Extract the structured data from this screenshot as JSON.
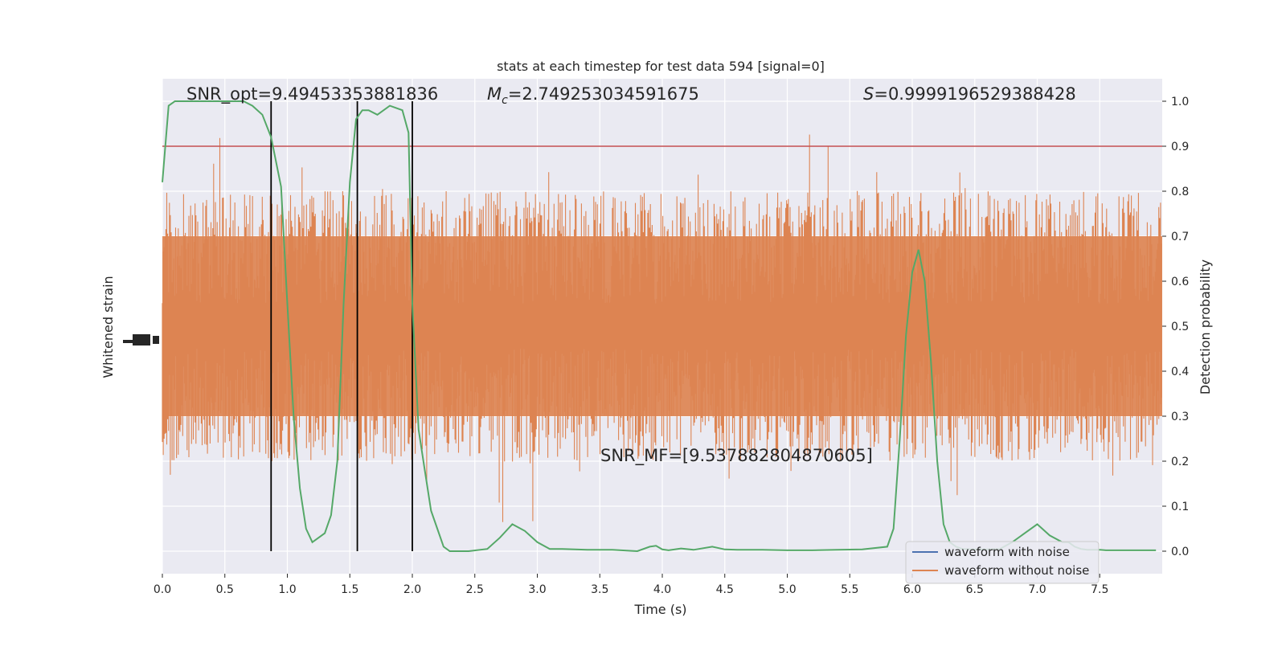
{
  "chart_data": {
    "type": "line",
    "title": "stats at each timestep for test data 594 [signal=0]",
    "xlabel": "Time (s)",
    "ylabel_left": "Whitened strain",
    "ylabel_right": "Detection probability",
    "xlim": [
      0.0,
      8.0
    ],
    "ylim_right": [
      -0.05,
      1.05
    ],
    "x_ticks": [
      "0.0",
      "0.5",
      "1.0",
      "1.5",
      "2.0",
      "2.5",
      "3.0",
      "3.5",
      "4.0",
      "4.5",
      "5.0",
      "5.5",
      "6.0",
      "6.5",
      "7.0",
      "7.5"
    ],
    "y_ticks_right": [
      "0.0",
      "0.1",
      "0.2",
      "0.3",
      "0.4",
      "0.5",
      "0.6",
      "0.7",
      "0.8",
      "0.9",
      "1.0"
    ],
    "grid": true,
    "legend_position": "lower-right",
    "annotations": {
      "snr_opt": "SNR_opt=9.49453353881836",
      "mc_prefix": "M",
      "mc_sub": "c",
      "mc_value": "=2.749253034591675",
      "s_prefix": "S",
      "s_value": "=0.9999196529388428",
      "snr_mf": "SNR_MF=[9.537882804870605]"
    },
    "threshold": 0.9,
    "vertical_lines_x": [
      0.87,
      1.56,
      2.0
    ],
    "series": [
      {
        "name": "waveform with noise",
        "color": "#4c72b0",
        "values": []
      },
      {
        "name": "waveform without noise",
        "color": "#dd8452",
        "noise_band": [
          0.3,
          0.7
        ]
      },
      {
        "color": "#55a868",
        "x": [
          0.0,
          0.05,
          0.1,
          0.15,
          0.25,
          0.35,
          0.45,
          0.55,
          0.65,
          0.72,
          0.8,
          0.87,
          0.95,
          1.0,
          1.05,
          1.1,
          1.15,
          1.2,
          1.25,
          1.3,
          1.35,
          1.4,
          1.45,
          1.5,
          1.55,
          1.6,
          1.65,
          1.72,
          1.82,
          1.92,
          1.97,
          2.0,
          2.05,
          2.1,
          2.15,
          2.2,
          2.25,
          2.3,
          2.35,
          2.45,
          2.6,
          2.7,
          2.8,
          2.9,
          3.0,
          3.1,
          3.2,
          3.4,
          3.6,
          3.8,
          3.9,
          3.95,
          4.0,
          4.05,
          4.15,
          4.25,
          4.4,
          4.5,
          4.6,
          4.8,
          5.0,
          5.2,
          5.4,
          5.6,
          5.8,
          5.85,
          5.9,
          5.95,
          6.0,
          6.05,
          6.1,
          6.15,
          6.2,
          6.25,
          6.3,
          6.35,
          6.4,
          6.5,
          6.6,
          6.7,
          6.8,
          7.0,
          7.1,
          7.2,
          7.25,
          7.3,
          7.35,
          7.4,
          7.5,
          7.55,
          7.6,
          7.7,
          7.8,
          7.9,
          7.95
        ],
        "values": [
          0.82,
          0.99,
          1.0,
          1.0,
          1.0,
          1.0,
          1.0,
          1.0,
          1.0,
          0.99,
          0.97,
          0.92,
          0.81,
          0.55,
          0.3,
          0.14,
          0.05,
          0.02,
          0.03,
          0.04,
          0.08,
          0.2,
          0.55,
          0.82,
          0.96,
          0.98,
          0.98,
          0.97,
          0.99,
          0.98,
          0.93,
          0.55,
          0.27,
          0.18,
          0.09,
          0.05,
          0.01,
          0.0,
          0.0,
          0.0,
          0.005,
          0.03,
          0.06,
          0.045,
          0.02,
          0.005,
          0.005,
          0.003,
          0.003,
          0.0,
          0.01,
          0.012,
          0.004,
          0.002,
          0.006,
          0.003,
          0.01,
          0.004,
          0.003,
          0.003,
          0.002,
          0.002,
          0.003,
          0.004,
          0.01,
          0.05,
          0.25,
          0.48,
          0.62,
          0.67,
          0.6,
          0.42,
          0.2,
          0.06,
          0.02,
          0.01,
          0.005,
          0.004,
          0.004,
          0.005,
          0.02,
          0.06,
          0.035,
          0.02,
          0.02,
          0.01,
          0.005,
          0.003,
          0.003,
          0.002,
          0.002,
          0.002,
          0.002,
          0.002,
          0.002
        ]
      }
    ]
  },
  "colors": {
    "plot_background": "#eaeaf2",
    "grid": "#ffffff",
    "threshold_line": "#c44e52",
    "vertical_lines": "#000000",
    "probability_line": "#55a868"
  }
}
